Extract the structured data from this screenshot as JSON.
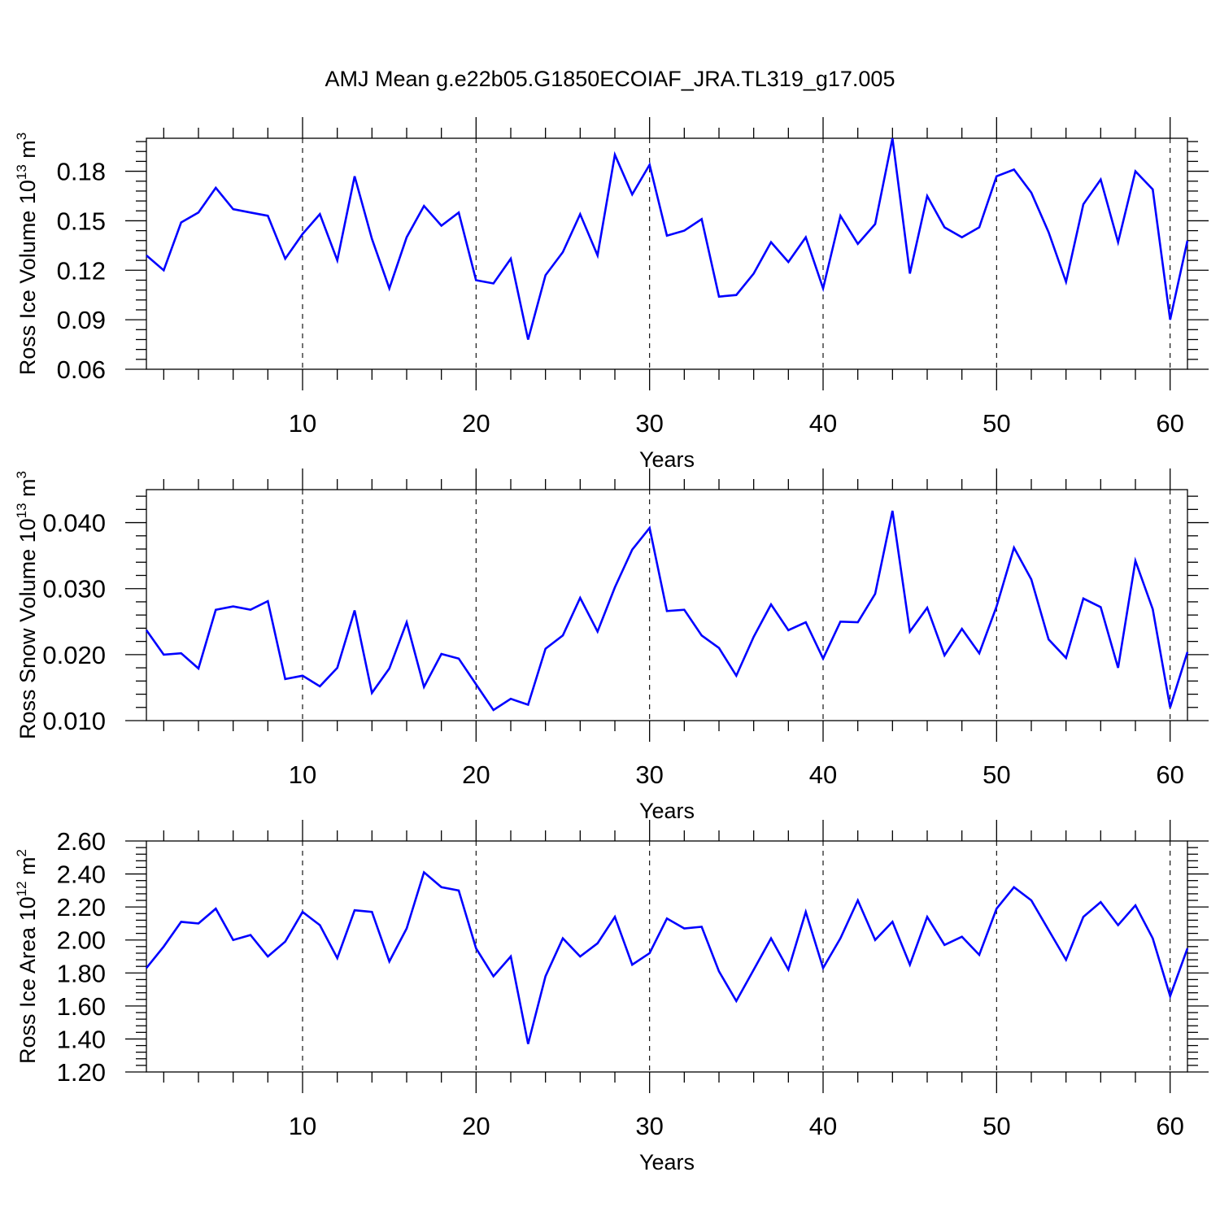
{
  "title": "AMJ Mean g.e22b05.G1850ECOIAF_JRA.TL319_g17.005",
  "line_color": "#0000ff",
  "chart_data": [
    {
      "type": "line",
      "xlabel": "Years",
      "ylabel": {
        "base": "Ross Ice Volume 10",
        "exp": "13",
        "unit": " m",
        "unit_exp": "3"
      },
      "xlim": [
        1,
        61
      ],
      "ylim": [
        0.06,
        0.2
      ],
      "xticks": [
        10,
        20,
        30,
        40,
        50,
        60
      ],
      "xtick_labels": [
        "10",
        "20",
        "30",
        "40",
        "50",
        "60"
      ],
      "yticks": [
        0.06,
        0.09,
        0.12,
        0.15,
        0.18
      ],
      "ytick_labels": [
        "0.06",
        "0.09",
        "0.12",
        "0.15",
        "0.18"
      ],
      "grid": "vertical dashed at major x ticks",
      "x": [
        1,
        2,
        3,
        4,
        5,
        6,
        7,
        8,
        9,
        10,
        11,
        12,
        13,
        14,
        15,
        16,
        17,
        18,
        19,
        20,
        21,
        22,
        23,
        24,
        25,
        26,
        27,
        28,
        29,
        30,
        31,
        32,
        33,
        34,
        35,
        36,
        37,
        38,
        39,
        40,
        41,
        42,
        43,
        44,
        45,
        46,
        47,
        48,
        49,
        50,
        51,
        52,
        53,
        54,
        55,
        56,
        57,
        58,
        59,
        60,
        61
      ],
      "series": [
        {
          "values": [
            0.129,
            0.12,
            0.149,
            0.155,
            0.17,
            0.157,
            0.155,
            0.153,
            0.127,
            0.142,
            0.154,
            0.126,
            0.177,
            0.139,
            0.109,
            0.14,
            0.159,
            0.147,
            0.155,
            0.114,
            0.112,
            0.127,
            0.078,
            0.117,
            0.131,
            0.154,
            0.129,
            0.19,
            0.166,
            0.184,
            0.141,
            0.144,
            0.151,
            0.104,
            0.105,
            0.118,
            0.137,
            0.125,
            0.14,
            0.109,
            0.153,
            0.136,
            0.148,
            0.2,
            0.118,
            0.165,
            0.146,
            0.14,
            0.146,
            0.177,
            0.181,
            0.167,
            0.143,
            0.113,
            0.16,
            0.175,
            0.137,
            0.18,
            0.169,
            0.09,
            0.138
          ]
        }
      ]
    },
    {
      "type": "line",
      "xlabel": "Years",
      "ylabel": {
        "base": "Ross Snow Volume 10",
        "exp": "13",
        "unit": " m",
        "unit_exp": "3"
      },
      "xlim": [
        1,
        61
      ],
      "ylim": [
        0.01,
        0.045
      ],
      "xticks": [
        10,
        20,
        30,
        40,
        50,
        60
      ],
      "xtick_labels": [
        "10",
        "20",
        "30",
        "40",
        "50",
        "60"
      ],
      "yticks": [
        0.01,
        0.02,
        0.03,
        0.04
      ],
      "ytick_labels": [
        "0.010",
        "0.020",
        "0.030",
        "0.040"
      ],
      "grid": "vertical dashed at major x ticks",
      "x": [
        1,
        2,
        3,
        4,
        5,
        6,
        7,
        8,
        9,
        10,
        11,
        12,
        13,
        14,
        15,
        16,
        17,
        18,
        19,
        20,
        21,
        22,
        23,
        24,
        25,
        26,
        27,
        28,
        29,
        30,
        31,
        32,
        33,
        34,
        35,
        36,
        37,
        38,
        39,
        40,
        41,
        42,
        43,
        44,
        45,
        46,
        47,
        48,
        49,
        50,
        51,
        52,
        53,
        54,
        55,
        56,
        57,
        58,
        59,
        60,
        61
      ],
      "series": [
        {
          "values": [
            0.0237,
            0.02,
            0.0202,
            0.0179,
            0.0268,
            0.0273,
            0.0268,
            0.0281,
            0.0163,
            0.0168,
            0.0152,
            0.018,
            0.0267,
            0.0142,
            0.0179,
            0.0249,
            0.0151,
            0.0201,
            0.0194,
            0.0155,
            0.0116,
            0.0133,
            0.0124,
            0.0209,
            0.0229,
            0.0286,
            0.0235,
            0.0302,
            0.0359,
            0.0392,
            0.0266,
            0.0268,
            0.0229,
            0.021,
            0.0168,
            0.0227,
            0.0276,
            0.0237,
            0.0249,
            0.0194,
            0.025,
            0.0249,
            0.0292,
            0.0418,
            0.0235,
            0.0271,
            0.0199,
            0.0239,
            0.0202,
            0.0273,
            0.0362,
            0.0314,
            0.0223,
            0.0195,
            0.0285,
            0.0272,
            0.018,
            0.0342,
            0.0269,
            0.012,
            0.0204
          ]
        }
      ]
    },
    {
      "type": "line",
      "xlabel": "Years",
      "ylabel": {
        "base": "Ross Ice Area 10",
        "exp": "12",
        "unit": " m",
        "unit_exp": "2"
      },
      "xlim": [
        1,
        61
      ],
      "ylim": [
        1.2,
        2.6
      ],
      "xticks": [
        10,
        20,
        30,
        40,
        50,
        60
      ],
      "xtick_labels": [
        "10",
        "20",
        "30",
        "40",
        "50",
        "60"
      ],
      "yticks": [
        1.2,
        1.4,
        1.6,
        1.8,
        2.0,
        2.2,
        2.4,
        2.6
      ],
      "ytick_labels": [
        "1.20",
        "1.40",
        "1.60",
        "1.80",
        "2.00",
        "2.20",
        "2.40",
        "2.60"
      ],
      "grid": "vertical dashed at major x ticks",
      "x": [
        1,
        2,
        3,
        4,
        5,
        6,
        7,
        8,
        9,
        10,
        11,
        12,
        13,
        14,
        15,
        16,
        17,
        18,
        19,
        20,
        21,
        22,
        23,
        24,
        25,
        26,
        27,
        28,
        29,
        30,
        31,
        32,
        33,
        34,
        35,
        36,
        37,
        38,
        39,
        40,
        41,
        42,
        43,
        44,
        45,
        46,
        47,
        48,
        49,
        50,
        51,
        52,
        53,
        54,
        55,
        56,
        57,
        58,
        59,
        60,
        61
      ],
      "series": [
        {
          "values": [
            1.83,
            1.96,
            2.11,
            2.1,
            2.19,
            2.0,
            2.03,
            1.9,
            1.99,
            2.17,
            2.09,
            1.89,
            2.18,
            2.17,
            1.87,
            2.07,
            2.41,
            2.32,
            2.3,
            1.95,
            1.78,
            1.9,
            1.37,
            1.78,
            2.01,
            1.9,
            1.98,
            2.14,
            1.85,
            1.92,
            2.13,
            2.07,
            2.08,
            1.81,
            1.63,
            1.82,
            2.01,
            1.82,
            2.17,
            1.83,
            2.01,
            2.24,
            2.0,
            2.11,
            1.85,
            2.14,
            1.97,
            2.02,
            1.91,
            2.19,
            2.32,
            2.24,
            2.06,
            1.88,
            2.14,
            2.23,
            2.09,
            2.21,
            2.01,
            1.66,
            1.95
          ]
        }
      ]
    }
  ]
}
